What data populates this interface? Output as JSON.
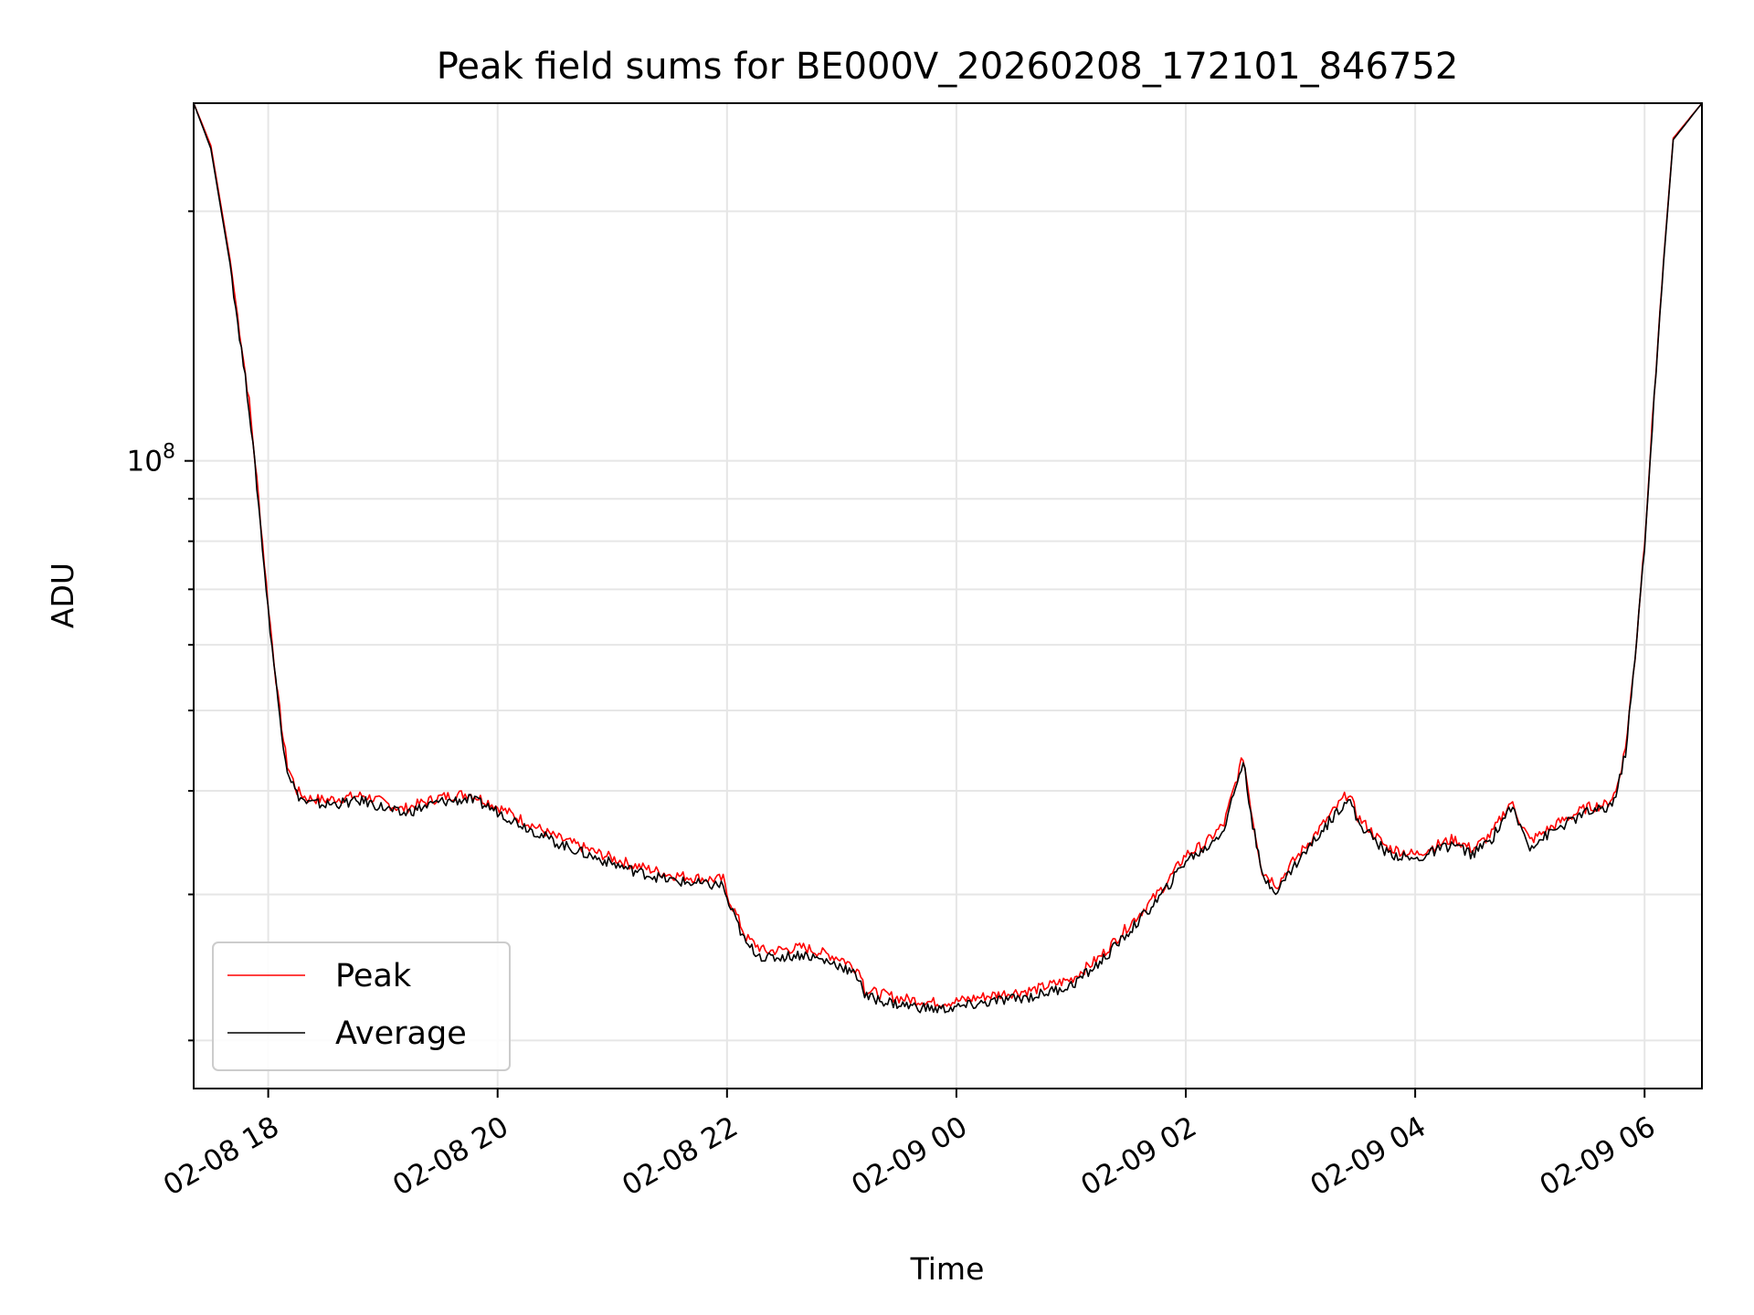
{
  "chart_data": {
    "type": "line",
    "title": "Peak field sums for BE000V_20260208_172101_846752",
    "xlabel": "Time",
    "ylabel": "ADU",
    "yscale": "log",
    "grid": true,
    "legend_position": "lower-left",
    "x_ticks": [
      "02-08 18",
      "02-08 20",
      "02-08 22",
      "02-09 00",
      "02-09 02",
      "02-09 04",
      "02-09 06"
    ],
    "y_tick_base": "10",
    "y_tick_exp": "8",
    "xlim": [
      "2026-02-08 17:21",
      "2026-02-09 06:30"
    ],
    "ylim": [
      17500000,
      270000000
    ],
    "colors": {
      "peak": "#ff0000",
      "average": "#000000"
    },
    "series": [
      {
        "name": "Peak",
        "color": "#ff0000",
        "x": [
          "2026-02-08 17:21",
          "2026-02-08 17:30",
          "2026-02-08 17:40",
          "2026-02-08 17:50",
          "2026-02-08 17:55",
          "2026-02-08 18:00",
          "2026-02-08 18:05",
          "2026-02-08 18:08",
          "2026-02-08 18:10",
          "2026-02-08 18:15",
          "2026-02-08 18:20",
          "2026-02-08 18:30",
          "2026-02-08 18:50",
          "2026-02-08 19:10",
          "2026-02-08 19:30",
          "2026-02-08 19:45",
          "2026-02-08 19:55",
          "2026-02-08 20:10",
          "2026-02-08 20:30",
          "2026-02-08 20:50",
          "2026-02-08 21:10",
          "2026-02-08 21:30",
          "2026-02-08 21:50",
          "2026-02-08 21:58",
          "2026-02-08 22:00",
          "2026-02-08 22:05",
          "2026-02-08 22:10",
          "2026-02-08 22:20",
          "2026-02-08 22:40",
          "2026-02-08 23:00",
          "2026-02-08 23:10",
          "2026-02-08 23:12",
          "2026-02-08 23:30",
          "2026-02-08 23:50",
          "2026-02-09 00:00",
          "2026-02-09 00:20",
          "2026-02-09 00:40",
          "2026-02-09 01:00",
          "2026-02-09 01:15",
          "2026-02-09 01:30",
          "2026-02-09 01:45",
          "2026-02-09 01:50",
          "2026-02-09 02:00",
          "2026-02-09 02:10",
          "2026-02-09 02:20",
          "2026-02-09 02:30",
          "2026-02-09 02:35",
          "2026-02-09 02:40",
          "2026-02-09 02:48",
          "2026-02-09 02:55",
          "2026-02-09 03:10",
          "2026-02-09 03:25",
          "2026-02-09 03:30",
          "2026-02-09 03:45",
          "2026-02-09 04:00",
          "2026-02-09 04:10",
          "2026-02-09 04:20",
          "2026-02-09 04:30",
          "2026-02-09 04:40",
          "2026-02-09 04:50",
          "2026-02-09 05:00",
          "2026-02-09 05:15",
          "2026-02-09 05:30",
          "2026-02-09 05:40",
          "2026-02-09 05:45",
          "2026-02-09 05:50",
          "2026-02-09 05:55",
          "2026-02-09 06:00",
          "2026-02-09 06:05",
          "2026-02-09 06:10",
          "2026-02-09 06:15",
          "2026-02-09 06:30"
        ],
        "y": [
          270000000,
          240000000,
          175000000,
          118000000,
          90000000,
          67000000,
          52000000,
          46000000,
          43000000,
          40000000,
          39200000,
          39000000,
          39500000,
          38000000,
          39300000,
          39700000,
          38800000,
          37200000,
          35200000,
          33800000,
          32600000,
          31700000,
          31300000,
          31300000,
          30000000,
          28300000,
          26600000,
          25600000,
          25900000,
          25100000,
          24200000,
          23000000,
          22500000,
          22200000,
          22300000,
          22700000,
          23000000,
          23700000,
          25200000,
          27500000,
          30000000,
          31000000,
          33500000,
          34500000,
          36500000,
          44000000,
          37000000,
          32000000,
          30800000,
          32600000,
          36000000,
          39800000,
          37200000,
          34200000,
          33500000,
          34300000,
          35000000,
          34000000,
          35500000,
          38800000,
          34800000,
          36600000,
          38200000,
          38500000,
          39900000,
          45000000,
          58000000,
          80000000,
          120000000,
          175000000,
          245000000,
          270000000
        ]
      },
      {
        "name": "Average",
        "color": "#000000",
        "x": [
          "2026-02-08 17:21",
          "2026-02-08 17:30",
          "2026-02-08 17:40",
          "2026-02-08 17:50",
          "2026-02-08 17:55",
          "2026-02-08 18:00",
          "2026-02-08 18:05",
          "2026-02-08 18:08",
          "2026-02-08 18:10",
          "2026-02-08 18:15",
          "2026-02-08 18:20",
          "2026-02-08 18:30",
          "2026-02-08 18:50",
          "2026-02-08 19:10",
          "2026-02-08 19:30",
          "2026-02-08 19:45",
          "2026-02-08 19:55",
          "2026-02-08 20:10",
          "2026-02-08 20:30",
          "2026-02-08 20:50",
          "2026-02-08 21:10",
          "2026-02-08 21:30",
          "2026-02-08 21:50",
          "2026-02-08 21:58",
          "2026-02-08 22:00",
          "2026-02-08 22:05",
          "2026-02-08 22:10",
          "2026-02-08 22:20",
          "2026-02-08 22:40",
          "2026-02-08 23:00",
          "2026-02-08 23:10",
          "2026-02-08 23:12",
          "2026-02-08 23:30",
          "2026-02-08 23:50",
          "2026-02-09 00:00",
          "2026-02-09 00:20",
          "2026-02-09 00:40",
          "2026-02-09 01:00",
          "2026-02-09 01:15",
          "2026-02-09 01:30",
          "2026-02-09 01:45",
          "2026-02-09 01:50",
          "2026-02-09 02:00",
          "2026-02-09 02:10",
          "2026-02-09 02:20",
          "2026-02-09 02:30",
          "2026-02-09 02:35",
          "2026-02-09 02:40",
          "2026-02-09 02:48",
          "2026-02-09 02:55",
          "2026-02-09 03:10",
          "2026-02-09 03:25",
          "2026-02-09 03:30",
          "2026-02-09 03:45",
          "2026-02-09 04:00",
          "2026-02-09 04:10",
          "2026-02-09 04:20",
          "2026-02-09 04:30",
          "2026-02-09 04:40",
          "2026-02-09 04:50",
          "2026-02-09 05:00",
          "2026-02-09 05:15",
          "2026-02-09 05:30",
          "2026-02-09 05:40",
          "2026-02-09 05:45",
          "2026-02-09 05:50",
          "2026-02-09 05:55",
          "2026-02-09 06:00",
          "2026-02-09 06:05",
          "2026-02-09 06:10",
          "2026-02-09 06:15",
          "2026-02-09 06:30"
        ],
        "y": [
          270000000,
          238000000,
          173000000,
          116000000,
          88500000,
          66000000,
          51500000,
          45500000,
          42500000,
          39600000,
          38700000,
          38500000,
          38900000,
          37500000,
          38800000,
          39100000,
          38300000,
          36700000,
          34700000,
          33300000,
          32100000,
          31200000,
          30800000,
          30800000,
          29500000,
          27800000,
          26100000,
          25100000,
          25400000,
          24600000,
          23700000,
          22600000,
          22100000,
          21800000,
          21900000,
          22300000,
          22600000,
          23300000,
          24800000,
          27000000,
          29500000,
          30500000,
          33000000,
          34000000,
          36000000,
          43500000,
          36500000,
          31500000,
          30300000,
          32100000,
          35500000,
          39300000,
          36700000,
          33700000,
          33000000,
          33800000,
          34500000,
          33500000,
          35000000,
          38300000,
          34300000,
          36100000,
          37700000,
          38000000,
          39400000,
          44500000,
          57500000,
          79000000,
          119000000,
          174000000,
          244000000,
          270000000
        ]
      }
    ]
  }
}
